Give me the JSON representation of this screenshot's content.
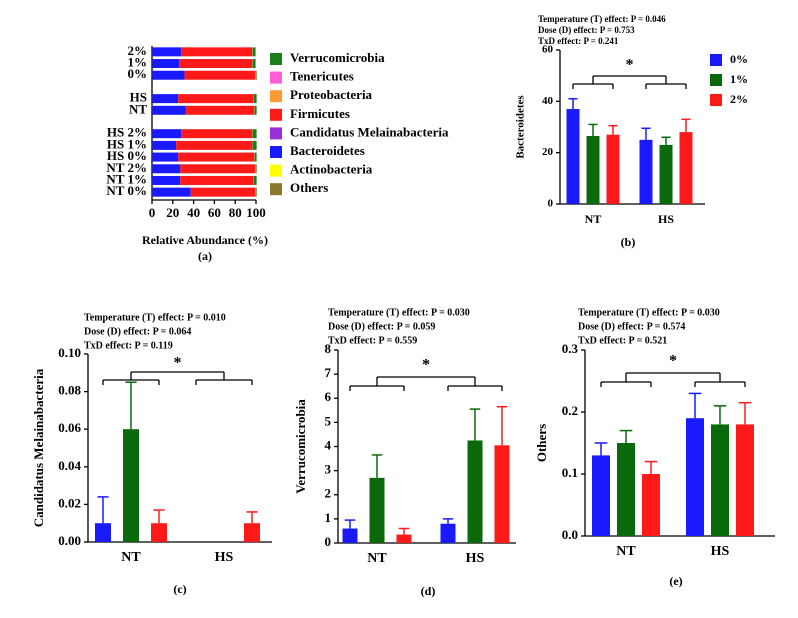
{
  "chart_data": [
    {
      "type": "bar",
      "orientation": "horizontal",
      "stacked": true,
      "categories": [
        "2%",
        "1%",
        "0%",
        null,
        "HS",
        "NT",
        null,
        "HS 2%",
        "HS 1%",
        "HS 0%",
        "NT 2%",
        "NT 1%",
        "NT 0%"
      ],
      "series": [
        {
          "name": "Verrucomicrobia",
          "color": "#1a7f1a",
          "values": [
            3,
            3,
            1,
            null,
            3,
            2,
            null,
            4,
            4,
            2,
            1,
            3,
            1
          ]
        },
        {
          "name": "Tenericutes",
          "color": "#ff5fd2",
          "values": [
            0.1,
            0.1,
            0.1,
            null,
            0.1,
            0.1,
            null,
            0.1,
            0.1,
            0.1,
            0.1,
            0.1,
            0.1
          ]
        },
        {
          "name": "Proteobacteria",
          "color": "#ff9933",
          "values": [
            0.3,
            0.3,
            0.3,
            null,
            0.3,
            0.3,
            null,
            0.3,
            0.3,
            0.3,
            0.3,
            0.3,
            0.3
          ]
        },
        {
          "name": "Firmicutes",
          "color": "#ff1a1a",
          "values": [
            68,
            70,
            68,
            null,
            72,
            66,
            null,
            68,
            73,
            73,
            72,
            70,
            62
          ]
        },
        {
          "name": "Candidatus Melainabacteria",
          "color": "#9b30d9",
          "values": [
            0,
            0,
            0,
            null,
            0,
            0,
            null,
            0,
            0,
            0,
            0,
            0,
            0
          ]
        },
        {
          "name": "Bacteroidetes",
          "color": "#1a1aff",
          "values": [
            28,
            26,
            31,
            null,
            25,
            32,
            null,
            28,
            23,
            25,
            27,
            27,
            37
          ]
        },
        {
          "name": "Actinobacteria",
          "color": "#ffff00",
          "values": [
            0,
            0,
            0,
            null,
            0,
            0,
            null,
            0,
            0,
            0,
            0,
            0,
            0
          ]
        },
        {
          "name": "Others",
          "color": "#8b7a2e",
          "values": [
            0.2,
            0.2,
            0.2,
            null,
            0.2,
            0.2,
            null,
            0.2,
            0.2,
            0.2,
            0.2,
            0.2,
            0.2
          ]
        }
      ],
      "xlim": [
        0,
        100
      ],
      "xticks": [
        0,
        20,
        40,
        60,
        80,
        100
      ],
      "xlabel": "Relative Abundance (%)",
      "caption": "(a)",
      "legend": "right"
    },
    {
      "type": "bar",
      "categories": [
        "NT",
        "HS"
      ],
      "series": [
        {
          "name": "0%",
          "color": "#1a1aff",
          "values": [
            37,
            25
          ],
          "errors": [
            4,
            4.5
          ]
        },
        {
          "name": "1%",
          "color": "#0a6a0a",
          "values": [
            26.5,
            23
          ],
          "errors": [
            4.5,
            3
          ]
        },
        {
          "name": "2%",
          "color": "#ff1a1a",
          "values": [
            27,
            28
          ],
          "errors": [
            3.5,
            5
          ]
        }
      ],
      "ylim": [
        0,
        60
      ],
      "yticks": [
        0,
        20,
        40,
        60
      ],
      "ylabel": "Bacteroidetes",
      "annotations": [
        "Temperature (T) effect: P = 0.046",
        "Dose (D) effect: P = 0.753",
        "TxD effect: P = 0.241",
        "*"
      ],
      "caption": "(b)",
      "legend": "right"
    },
    {
      "type": "bar",
      "categories": [
        "NT",
        "HS"
      ],
      "series": [
        {
          "color": "#1a1aff",
          "values": [
            0.01,
            0
          ],
          "errors": [
            0.014,
            0
          ]
        },
        {
          "color": "#0a6a0a",
          "values": [
            0.06,
            0
          ],
          "errors": [
            0.025,
            0
          ]
        },
        {
          "color": "#ff1a1a",
          "values": [
            0.01,
            0.01
          ],
          "errors": [
            0.007,
            0.006
          ]
        }
      ],
      "ylim": [
        0,
        0.1
      ],
      "yticks": [
        {
          "value": 0,
          "label": "0.00"
        },
        0.02,
        0.04,
        0.06,
        0.08,
        {
          "value": 0.1,
          "label": "0.10"
        }
      ],
      "ylabel": "Candidatus Melainabacteria",
      "annotations": [
        "Temperature (T) effect: P = 0.010",
        "Dose (D) effect: P = 0.064",
        "TxD effect: P = 0.119",
        "*"
      ],
      "caption": "(c)"
    },
    {
      "type": "bar",
      "categories": [
        "NT",
        "HS"
      ],
      "series": [
        {
          "color": "#1a1aff",
          "values": [
            0.6,
            0.8
          ],
          "errors": [
            0.35,
            0.2
          ]
        },
        {
          "color": "#0a6a0a",
          "values": [
            2.7,
            4.25
          ],
          "errors": [
            0.95,
            1.3
          ]
        },
        {
          "color": "#ff1a1a",
          "values": [
            0.35,
            4.05
          ],
          "errors": [
            0.25,
            1.6
          ]
        }
      ],
      "ylim": [
        0,
        8
      ],
      "yticks": [
        0,
        1,
        2,
        3,
        4,
        5,
        6,
        7,
        8
      ],
      "ylabel": "Verrucomicrobia",
      "annotations": [
        "Temperature (T) effect: P = 0.030",
        "Dose (D) effect: P = 0.059",
        "TxD effect: P = 0.559",
        "*"
      ],
      "caption": "(d)"
    },
    {
      "type": "bar",
      "categories": [
        "NT",
        "HS"
      ],
      "series": [
        {
          "color": "#1a1aff",
          "values": [
            0.13,
            0.19
          ],
          "errors": [
            0.02,
            0.04
          ]
        },
        {
          "color": "#0a6a0a",
          "values": [
            0.15,
            0.18
          ],
          "errors": [
            0.02,
            0.03
          ]
        },
        {
          "color": "#ff1a1a",
          "values": [
            0.1,
            0.18
          ],
          "errors": [
            0.02,
            0.035
          ]
        }
      ],
      "ylim": [
        0,
        0.3
      ],
      "yticks": [
        {
          "value": 0,
          "label": "0.0"
        },
        0.1,
        0.2,
        0.3
      ],
      "ylabel": "Others",
      "annotations": [
        "Temperature (T) effect: P = 0.030",
        "Dose (D) effect: P = 0.574",
        "TxD effect: P = 0.521",
        "*"
      ],
      "caption": "(e)"
    }
  ]
}
